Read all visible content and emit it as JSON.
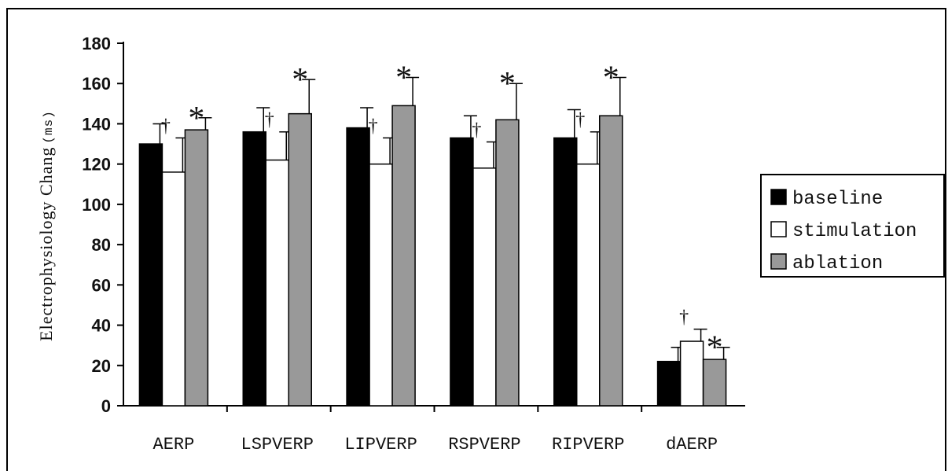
{
  "chart_data": {
    "type": "bar",
    "title": "",
    "ylabel": "Electrophysiology Chang",
    "ylabel_unit": "(ms)",
    "xlabel": "",
    "ylim": [
      0,
      180
    ],
    "yticks": [
      0,
      20,
      40,
      60,
      80,
      100,
      120,
      140,
      160,
      180
    ],
    "ytick_labels": [
      "0",
      "20",
      "40",
      "60",
      "80",
      "100",
      "120",
      "140",
      "160",
      "180"
    ],
    "grid": false,
    "legend_position": "right",
    "categories": [
      "AERP",
      "LSPVERP",
      "LIPVERP",
      "RSPVERP",
      "RIPVERP",
      "dAERP"
    ],
    "series": [
      {
        "name": "baseline",
        "color": "#000000",
        "values": [
          130,
          136,
          138,
          133,
          133,
          22
        ],
        "errors": [
          10,
          12,
          10,
          11,
          14,
          7
        ],
        "markers": [
          "",
          "",
          "",
          "",
          "",
          ""
        ]
      },
      {
        "name": "stimulation",
        "color": "#ffffff",
        "values": [
          116,
          122,
          120,
          118,
          120,
          32
        ],
        "errors": [
          17,
          14,
          13,
          13,
          16,
          6
        ],
        "markers": [
          "†",
          "†",
          "†",
          "†",
          "†",
          "†"
        ]
      },
      {
        "name": "ablation",
        "color": "#999999",
        "values": [
          137,
          145,
          149,
          142,
          144,
          23
        ],
        "errors": [
          6,
          17,
          14,
          18,
          19,
          6
        ],
        "markers": [
          "*",
          "*",
          "*",
          "*",
          "*",
          "*"
        ]
      }
    ]
  }
}
